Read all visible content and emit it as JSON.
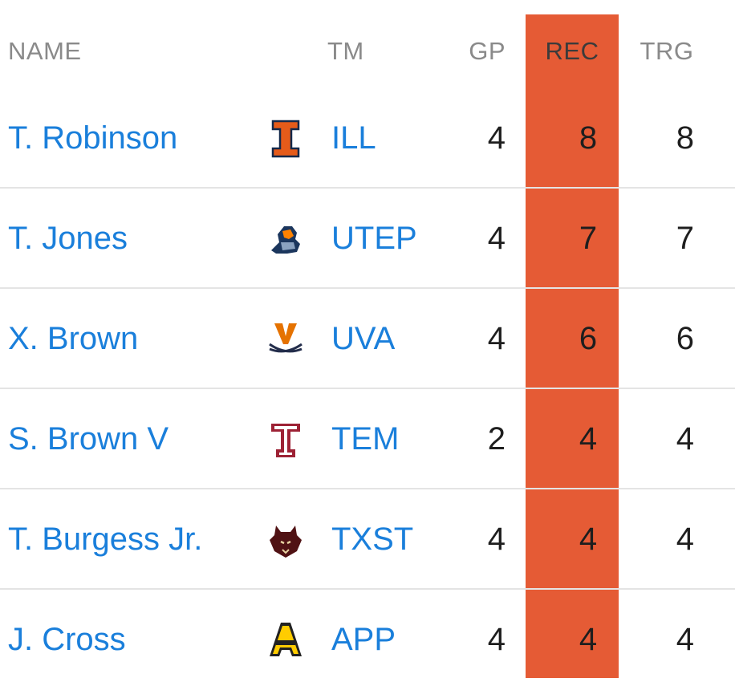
{
  "header": {
    "name": "NAME",
    "tm": "TM",
    "gp": "GP",
    "rec": "REC",
    "trg": "TRG"
  },
  "colors": {
    "highlight": "#e55b35",
    "link": "#1a7fdb",
    "header_text": "#8a8a8a"
  },
  "rows": [
    {
      "name": "T. Robinson",
      "logo_icon": "illinois-logo-icon",
      "team": "ILL",
      "gp": "4",
      "rec": "8",
      "trg": "8"
    },
    {
      "name": "T. Jones",
      "logo_icon": "utep-logo-icon",
      "team": "UTEP",
      "gp": "4",
      "rec": "7",
      "trg": "7"
    },
    {
      "name": "X. Brown",
      "logo_icon": "virginia-logo-icon",
      "team": "UVA",
      "gp": "4",
      "rec": "6",
      "trg": "6"
    },
    {
      "name": "S. Brown V",
      "logo_icon": "temple-logo-icon",
      "team": "TEM",
      "gp": "2",
      "rec": "4",
      "trg": "4"
    },
    {
      "name": "T. Burgess Jr.",
      "logo_icon": "texas-state-logo-icon",
      "team": "TXST",
      "gp": "4",
      "rec": "4",
      "trg": "4"
    },
    {
      "name": "J. Cross",
      "logo_icon": "app-state-logo-icon",
      "team": "APP",
      "gp": "4",
      "rec": "4",
      "trg": "4"
    }
  ]
}
